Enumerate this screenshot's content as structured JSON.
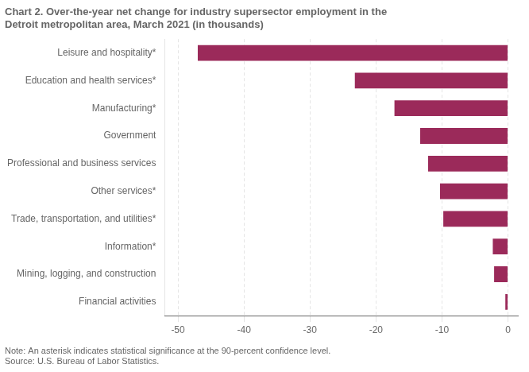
{
  "chart_data": {
    "type": "bar",
    "orientation": "horizontal",
    "title": [
      "Chart 2. Over-the-year net change for industry supersector employment in the",
      "Detroit metropolitan area, March 2021 (in thousands)"
    ],
    "annotations": [
      "Note: An asterisk indicates statistical significance at the 90-percent confidence level.",
      "Source: U.S. Bureau of Labor Statistics."
    ],
    "categories": [
      "Financial activities",
      "Mining, logging, and construction",
      "Information*",
      "Trade, transportation, and utilities*",
      "Other services*",
      "Professional and business services",
      "Government",
      "Manufacturing*",
      "Education and health services*",
      "Leisure and hospitality*"
    ],
    "values": [
      -0.4,
      -2.1,
      -2.3,
      -9.8,
      -10.3,
      -12.1,
      -13.3,
      -17.2,
      -23.2,
      -47.0
    ],
    "color": "#9b2a5a",
    "xlim": [
      -52,
      1.5
    ],
    "xticks": [
      -50,
      -40,
      -30,
      -20,
      -10,
      0
    ],
    "grid": true
  }
}
